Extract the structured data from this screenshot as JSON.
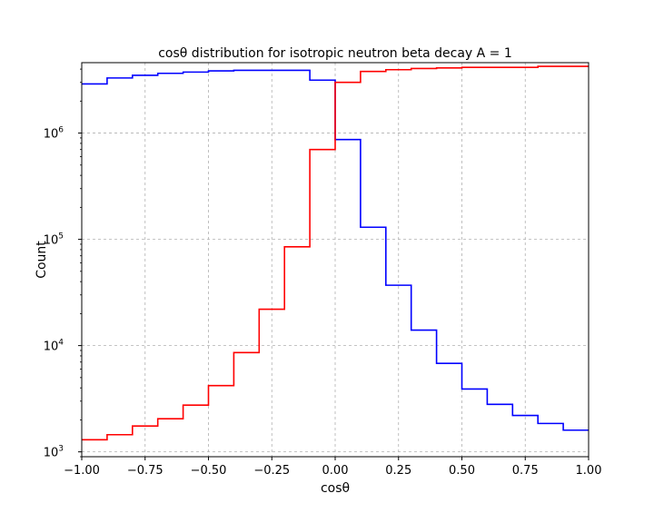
{
  "chart_data": {
    "type": "line",
    "step": true,
    "title": "cosθ distribution for isotropic neutron beta decay A = 1",
    "xlabel": "cosθ",
    "ylabel": "Count",
    "xlim": [
      -1.0,
      1.0
    ],
    "ylim": [
      900,
      4600000
    ],
    "yscale": "log",
    "grid": true,
    "grid_style": "dashed",
    "x_ticks": [
      -1.0,
      -0.75,
      -0.5,
      -0.25,
      0.0,
      0.25,
      0.5,
      0.75,
      1.0
    ],
    "x_tick_labels": [
      "−1.00",
      "−0.75",
      "−0.50",
      "−0.25",
      "0.00",
      "0.25",
      "0.50",
      "0.75",
      "1.00"
    ],
    "y_ticks": [
      {
        "value": 1000,
        "base": "10",
        "exp": "3"
      },
      {
        "value": 10000,
        "base": "10",
        "exp": "4"
      },
      {
        "value": 100000,
        "base": "10",
        "exp": "5"
      },
      {
        "value": 1000000,
        "base": "10",
        "exp": "6"
      }
    ],
    "bin_edges": [
      -1.0,
      -0.9,
      -0.8,
      -0.7,
      -0.6,
      -0.5,
      -0.4,
      -0.3,
      -0.2,
      -0.1,
      0.0,
      0.1,
      0.2,
      0.3,
      0.4,
      0.5,
      0.6,
      0.7,
      0.8,
      0.9,
      1.0
    ],
    "series": [
      {
        "color": "#0000ff",
        "values": [
          2900000,
          3300000,
          3500000,
          3650000,
          3750000,
          3850000,
          3900000,
          3900000,
          3900000,
          3150000,
          870000,
          130000,
          37000,
          14000,
          6800,
          3900,
          2800,
          2200,
          1850,
          1600
        ]
      },
      {
        "color": "#ff0000",
        "values": [
          1300,
          1450,
          1750,
          2050,
          2750,
          4200,
          8600,
          22000,
          85000,
          700000,
          3000000,
          3800000,
          3950000,
          4050000,
          4100000,
          4150000,
          4150000,
          4150000,
          4250000,
          4250000
        ]
      }
    ]
  }
}
